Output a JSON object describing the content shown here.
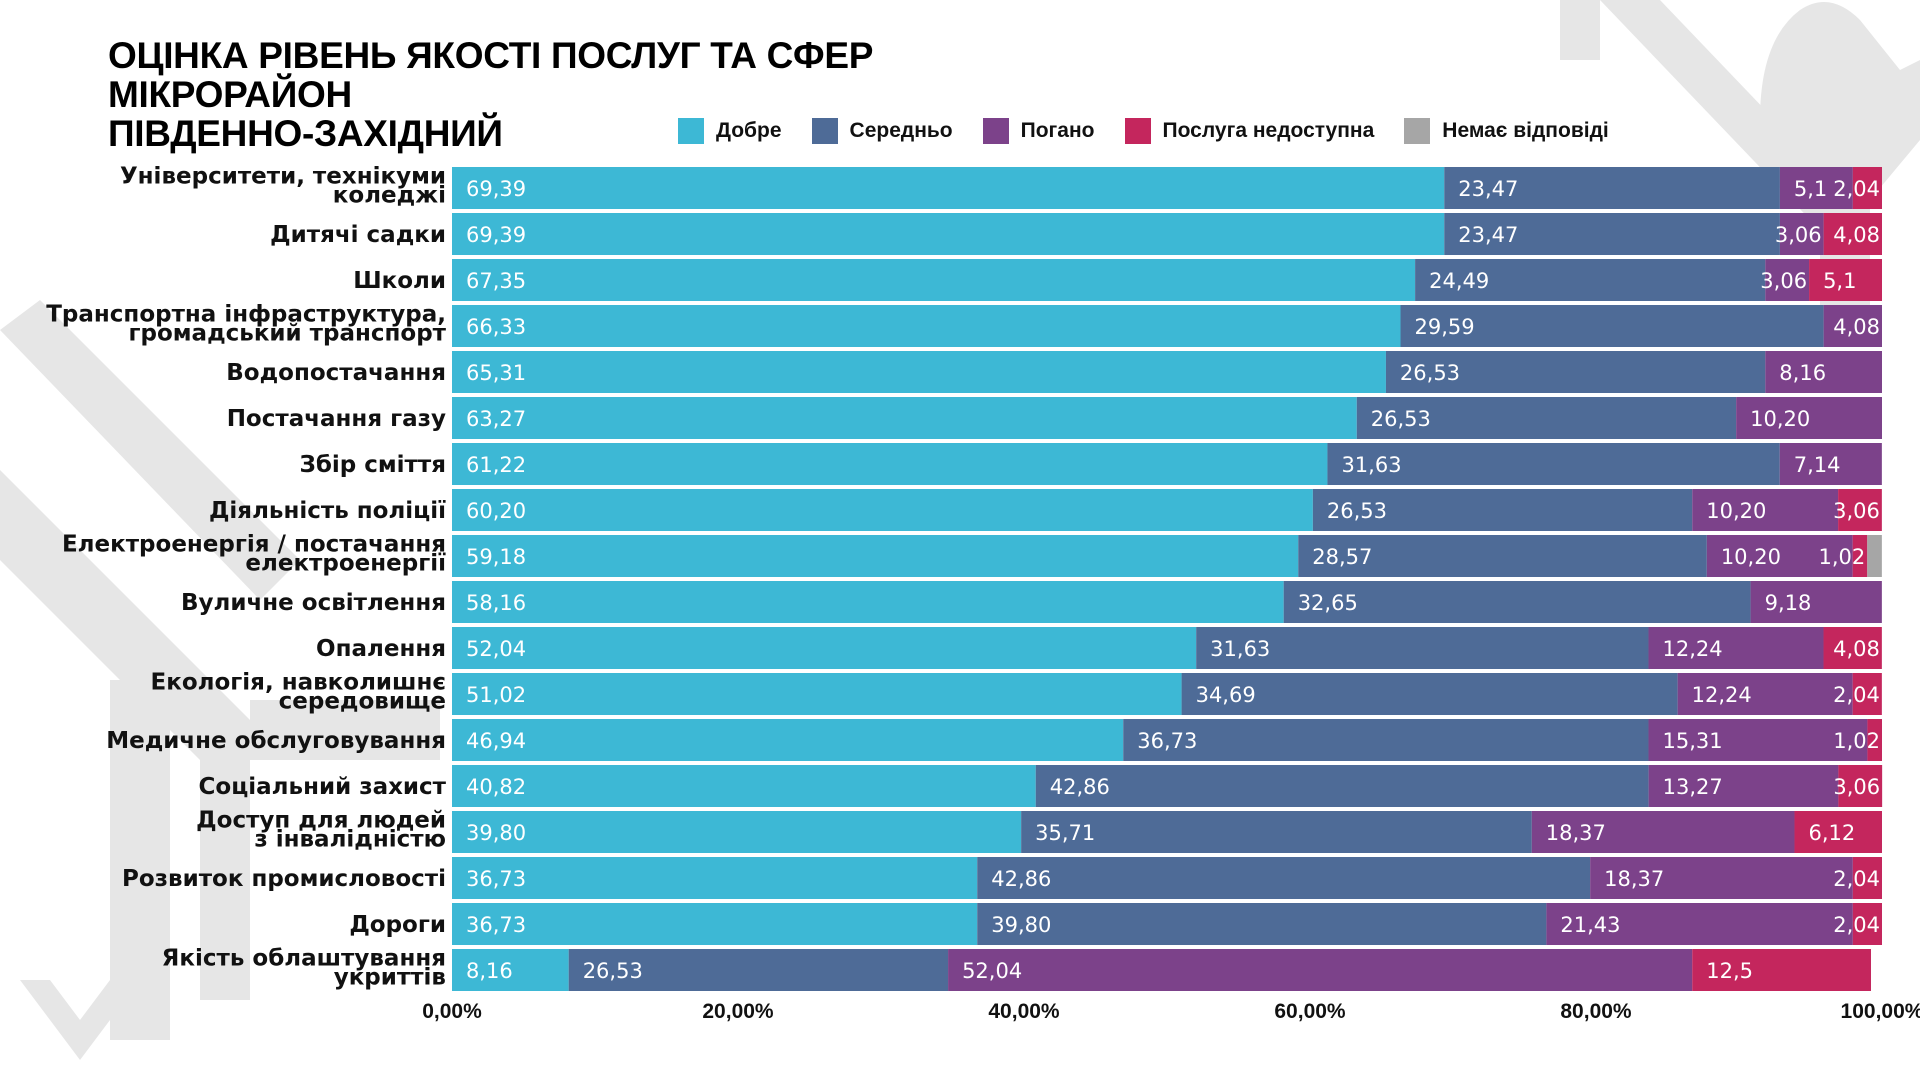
{
  "title_lines": [
    "ОЦІНКА РІВЕНЬ ЯКОСТІ ПОСЛУГ ТА СФЕР",
    "МІКРОРАЙОН",
    "ПІВДЕННО-ЗАХІДНИЙ"
  ],
  "chart_data": {
    "type": "bar",
    "orientation": "horizontal",
    "stacked": "100%",
    "title": "ОЦІНКА РІВЕНЬ ЯКОСТІ ПОСЛУГ ТА СФЕР МІКРОРАЙОН ПІВДЕННО-ЗАХІДНИЙ",
    "xlabel": "",
    "ylabel": "",
    "xlim": [
      0,
      100
    ],
    "x_ticks": [
      "0,00%",
      "20,00%",
      "40,00%",
      "60,00%",
      "80,00%",
      "100,00%"
    ],
    "grid": false,
    "legend_position": "top",
    "categories": [
      [
        "Університети, технікуми",
        "коледжі"
      ],
      [
        "Дитячі садки"
      ],
      [
        "Школи"
      ],
      [
        "Транспортна інфраструктура,",
        "громадський транспорт"
      ],
      [
        "Водопостачання"
      ],
      [
        "Постачання газу"
      ],
      [
        "Збір сміття"
      ],
      [
        "Діяльність поліції"
      ],
      [
        "Електроенергія / постачання",
        "електроенергії"
      ],
      [
        "Вуличне освітлення"
      ],
      [
        "Опалення"
      ],
      [
        "Екологія, навколишнє",
        "середовище"
      ],
      [
        "Медичне обслуговування"
      ],
      [
        "Соціальний захист"
      ],
      [
        "Доступ для людей",
        "з інвалідністю"
      ],
      [
        "Розвиток промисловості"
      ],
      [
        "Дороги"
      ],
      [
        "Якість облаштування",
        "укриттів"
      ]
    ],
    "series": [
      {
        "name": "Добре",
        "color": "#3db8d5",
        "values": [
          69.39,
          69.39,
          67.35,
          66.33,
          65.31,
          63.27,
          61.22,
          60.2,
          59.18,
          58.16,
          52.04,
          51.02,
          46.94,
          40.82,
          39.8,
          36.73,
          36.73,
          8.16
        ],
        "labels": [
          "69,39",
          "69,39",
          "67,35",
          "66,33",
          "65,31",
          "63,27",
          "61,22",
          "60,20",
          "59,18",
          "58,16",
          "52,04",
          "51,02",
          "46,94",
          "40,82",
          "39,80",
          "36,73",
          "36,73",
          "8,16"
        ]
      },
      {
        "name": "Середньо",
        "color": "#4e6b97",
        "values": [
          23.47,
          23.47,
          24.49,
          29.59,
          26.53,
          26.53,
          31.63,
          26.53,
          28.57,
          32.65,
          31.63,
          34.69,
          36.73,
          42.86,
          35.71,
          42.86,
          39.8,
          26.53
        ],
        "labels": [
          "23,47",
          "23,47",
          "24,49",
          "29,59",
          "26,53",
          "26,53",
          "31,63",
          "26,53",
          "28,57",
          "32,65",
          "31,63",
          "34,69",
          "36,73",
          "42,86",
          "35,71",
          "42,86",
          "39,80",
          "26,53"
        ]
      },
      {
        "name": "Погано",
        "color": "#7c428a",
        "values": [
          5.1,
          3.06,
          3.06,
          4.08,
          8.16,
          10.2,
          7.14,
          10.2,
          10.2,
          9.18,
          12.24,
          12.24,
          15.31,
          13.27,
          18.37,
          18.37,
          21.43,
          52.04
        ],
        "labels": [
          "5,1",
          "3,06",
          "3,06",
          "4,08",
          "8,16",
          "10,20",
          "7,14",
          "10,20",
          "10,20",
          "9,18",
          "12,24",
          "12,24",
          "15,31",
          "13,27",
          "18,37",
          "18,37",
          "21,43",
          "52,04"
        ]
      },
      {
        "name": "Послуга недоступна",
        "color": "#c4265d",
        "values": [
          2.04,
          4.08,
          5.1,
          0,
          0,
          0,
          0,
          3.06,
          1.02,
          0,
          4.08,
          2.04,
          1.02,
          3.06,
          6.12,
          2.04,
          2.04,
          12.5
        ],
        "labels": [
          "2,04",
          "4,08",
          "5,1",
          "",
          "",
          "",
          "",
          "3,06",
          "1,02",
          "",
          "4,08",
          "2,04",
          "1,02",
          "3,06",
          "6,12",
          "2,04",
          "2,04",
          "12,5"
        ]
      },
      {
        "name": "Немає відповіді",
        "color": "#a6a6a6",
        "values": [
          0,
          0,
          0,
          0,
          0,
          0,
          0,
          0,
          1.02,
          0,
          0,
          0,
          0,
          0,
          0,
          0,
          0,
          0
        ],
        "labels": [
          "",
          "",
          "",
          "",
          "",
          "",
          "",
          "",
          "",
          "",
          "",
          "",
          "",
          "",
          "",
          "",
          "",
          ""
        ]
      }
    ]
  }
}
